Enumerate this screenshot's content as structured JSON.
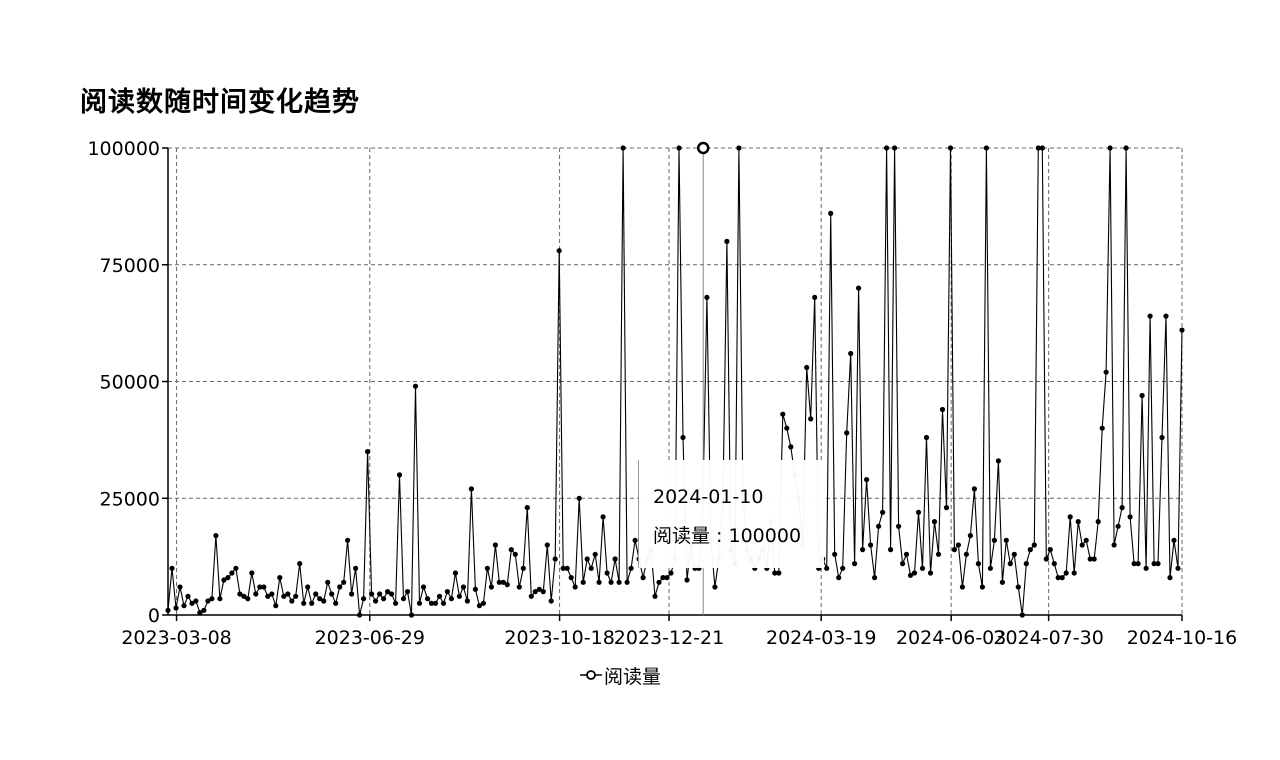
{
  "chart_data": {
    "type": "line",
    "title": "阅读数随时间变化趋势",
    "xlabel": "",
    "ylabel": "",
    "x_start": "2023-03-03",
    "x_end": "2024-10-16",
    "x_tick_labels": [
      "2023-03-08",
      "2023-06-29",
      "2023-10-18",
      "2023-12-21",
      "2024-03-19",
      "2024-06-03",
      "2024-07-30",
      "2024-10-16"
    ],
    "y_ticks": [
      0,
      25000,
      50000,
      75000,
      100000
    ],
    "ylim": [
      0,
      100000
    ],
    "grid": true,
    "legend_position": "bottom-center",
    "series": [
      {
        "name": "阅读量",
        "color": "#000000",
        "values": [
          1000,
          10000,
          1500,
          6000,
          2000,
          4000,
          2500,
          3000,
          500,
          1000,
          3000,
          3500,
          17000,
          3500,
          7500,
          8000,
          9000,
          10000,
          4500,
          4000,
          3500,
          9000,
          4500,
          6000,
          6000,
          4000,
          4500,
          2000,
          8000,
          4000,
          4500,
          3000,
          4000,
          11000,
          2500,
          6000,
          2500,
          4500,
          3500,
          3000,
          7000,
          4500,
          2500,
          6000,
          7000,
          16000,
          4500,
          10000,
          0,
          3500,
          35000,
          4500,
          3000,
          4500,
          3500,
          5000,
          4500,
          2500,
          30000,
          3500,
          5000,
          0,
          49000,
          2500,
          6000,
          3500,
          2500,
          2500,
          4000,
          2500,
          5000,
          3500,
          9000,
          4000,
          6000,
          3000,
          27000,
          5500,
          2000,
          2500,
          10000,
          6000,
          15000,
          7000,
          7000,
          6500,
          14000,
          13000,
          6000,
          10000,
          23000,
          4000,
          5000,
          5500,
          5000,
          15000,
          3000,
          12000,
          78000,
          10000,
          10000,
          8000,
          6000,
          25000,
          7000,
          12000,
          10000,
          13000,
          7000,
          21000,
          9000,
          7000,
          12000,
          7000,
          100000,
          7000,
          10000,
          16000,
          12000,
          8000,
          12000,
          14000,
          4000,
          7000,
          8000,
          8000,
          9000,
          12000,
          100000,
          38000,
          7500,
          15000,
          10000,
          10000,
          24000,
          68000,
          16000,
          6000,
          12000,
          24000,
          80000,
          14000,
          11000,
          100000,
          26000,
          14000,
          12000,
          10000,
          12000,
          14000,
          10000,
          20000,
          9000,
          9000,
          43000,
          40000,
          36000,
          30000,
          25000,
          15000,
          53000,
          42000,
          68000,
          10000,
          12000,
          10000,
          86000,
          13000,
          8000,
          10000,
          39000,
          56000,
          11000,
          70000,
          14000,
          29000,
          15000,
          8000,
          19000,
          22000,
          100000,
          14000,
          100000,
          19000,
          11000,
          13000,
          8500,
          9000,
          22000,
          10000,
          38000,
          9000,
          20000,
          13000,
          44000,
          23000,
          100000,
          14000,
          15000,
          6000,
          13000,
          17000,
          27000,
          11000,
          6000,
          100000,
          10000,
          16000,
          33000,
          7000,
          16000,
          11000,
          13000,
          6000,
          0,
          11000,
          14000,
          15000,
          100000,
          100000,
          12000,
          14000,
          11000,
          8000,
          8000,
          9000,
          21000,
          9000,
          20000,
          15000,
          16000,
          12000,
          12000,
          20000,
          40000,
          52000,
          100000,
          15000,
          19000,
          23000,
          100000,
          21000,
          11000,
          11000,
          47000,
          10000,
          64000,
          11000,
          11000,
          38000,
          64000,
          8000,
          16000,
          10000,
          61000
        ]
      }
    ],
    "highlight": {
      "date": "2024-01-10",
      "value": 100000
    }
  },
  "tooltip": {
    "date": "2024-01-10",
    "label": "阅读量",
    "separator": " : ",
    "value": "100000"
  },
  "legend": {
    "label": "阅读量"
  }
}
